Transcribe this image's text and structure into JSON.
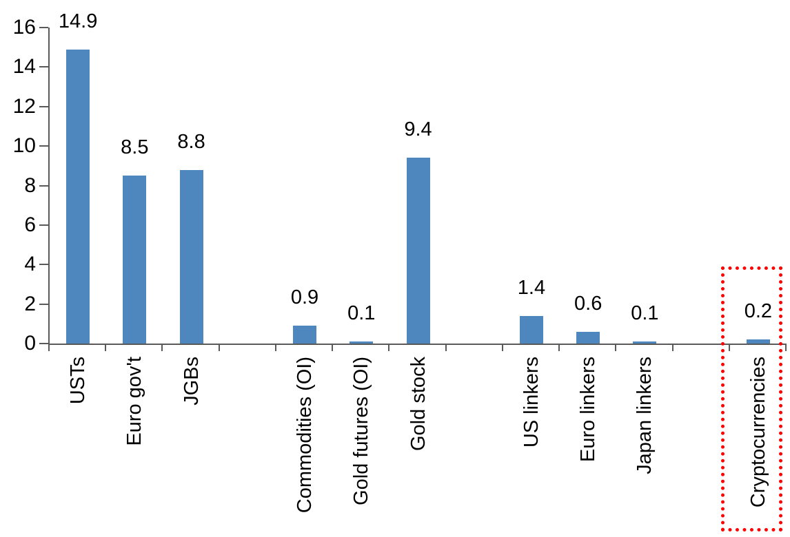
{
  "chart_data": {
    "type": "bar",
    "categories": [
      "USTs",
      "Euro gov't",
      "JGBs",
      "Commodities (OI)",
      "Gold futures (OI)",
      "Gold stock",
      "US linkers",
      "Euro linkers",
      "Japan linkers",
      "Cryptocurrencies"
    ],
    "values": [
      14.9,
      8.5,
      8.8,
      0.9,
      0.1,
      9.4,
      1.4,
      0.6,
      0.1,
      0.2
    ],
    "data_labels": [
      "14.9",
      "8.5",
      "8.8",
      "0.9",
      "0.1",
      "9.4",
      "1.4",
      "0.6",
      "0.1",
      "0.2"
    ],
    "slot_index": [
      0,
      1,
      2,
      4,
      5,
      6,
      8,
      9,
      10,
      12
    ],
    "total_slots": 13,
    "ylim": [
      0,
      16
    ],
    "yticks": [
      0,
      2,
      4,
      6,
      8,
      10,
      12,
      14,
      16
    ],
    "grid": false,
    "legend": false,
    "category_label_rotation_deg": 90,
    "bar_color": "#4E87BD",
    "axis_color": "#595959",
    "text_color": "#000000",
    "highlight": {
      "target_category": "Cryptocurrencies",
      "shape": "dotted-rectangle",
      "color": "#FF0000"
    }
  }
}
